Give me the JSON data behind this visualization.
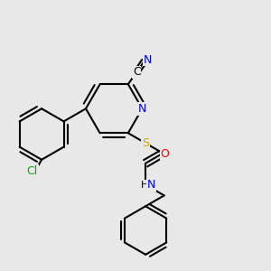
{
  "bg_color": "#e8e8e8",
  "bond_color": "#000000",
  "bond_width": 1.5,
  "atom_colors": {
    "C": "#000000",
    "N": "#0000ff",
    "O": "#ff0000",
    "S": "#ccaa00",
    "Cl": "#00aa00",
    "H": "#000000"
  },
  "font_size": 9.0,
  "fig_width": 3.0,
  "fig_height": 3.0,
  "dpi": 100,
  "xlim": [
    0.0,
    1.0
  ],
  "ylim": [
    0.0,
    1.0
  ]
}
